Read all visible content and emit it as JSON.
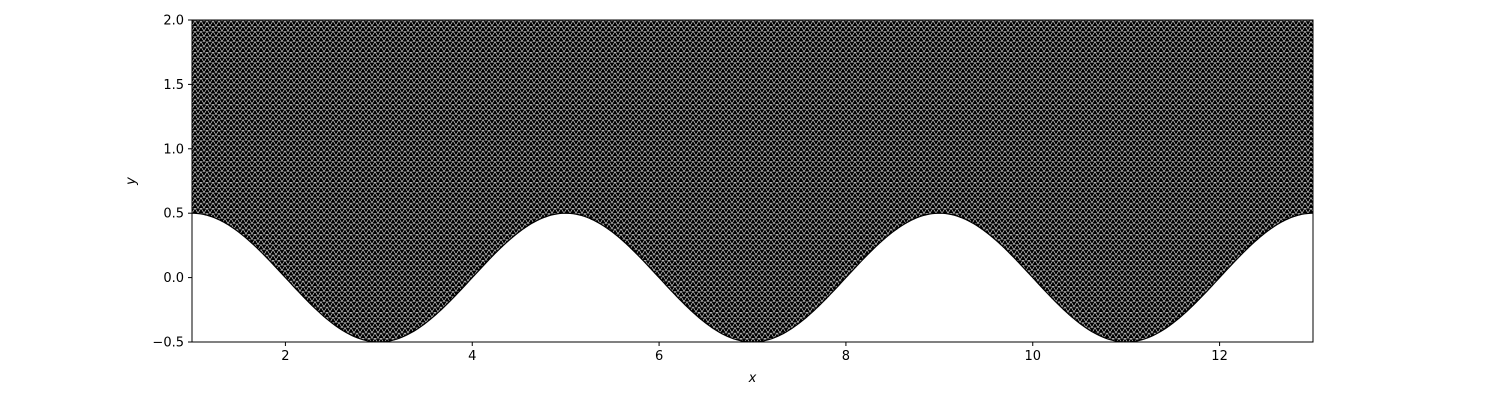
{
  "chart_data": {
    "type": "area",
    "description_visible": "triangular mesh filling region above a cosine-shaped lower boundary",
    "xlabel": "x",
    "ylabel": "y",
    "xlim": [
      1,
      13
    ],
    "ylim": [
      -0.5,
      2.0
    ],
    "x_ticks": [
      2,
      4,
      6,
      8,
      10,
      12
    ],
    "y_ticks": [
      -0.5,
      0.0,
      0.5,
      1.0,
      1.5,
      2.0
    ],
    "x_tick_labels": [
      "2",
      "4",
      "6",
      "8",
      "10",
      "12"
    ],
    "y_tick_labels": [
      "−0.5",
      "0.0",
      "0.5",
      "1.0",
      "1.5",
      "2.0"
    ],
    "lower_boundary": {
      "amplitude": 0.5,
      "period": 4,
      "peaks_x": [
        1,
        5,
        9,
        13
      ],
      "troughs_x": [
        3,
        7,
        11
      ],
      "peak_y": 0.5,
      "trough_y": -0.5
    },
    "upper_boundary_y": 2.0,
    "grid": false,
    "mesh_color": "#000000",
    "background": "#ffffff"
  }
}
